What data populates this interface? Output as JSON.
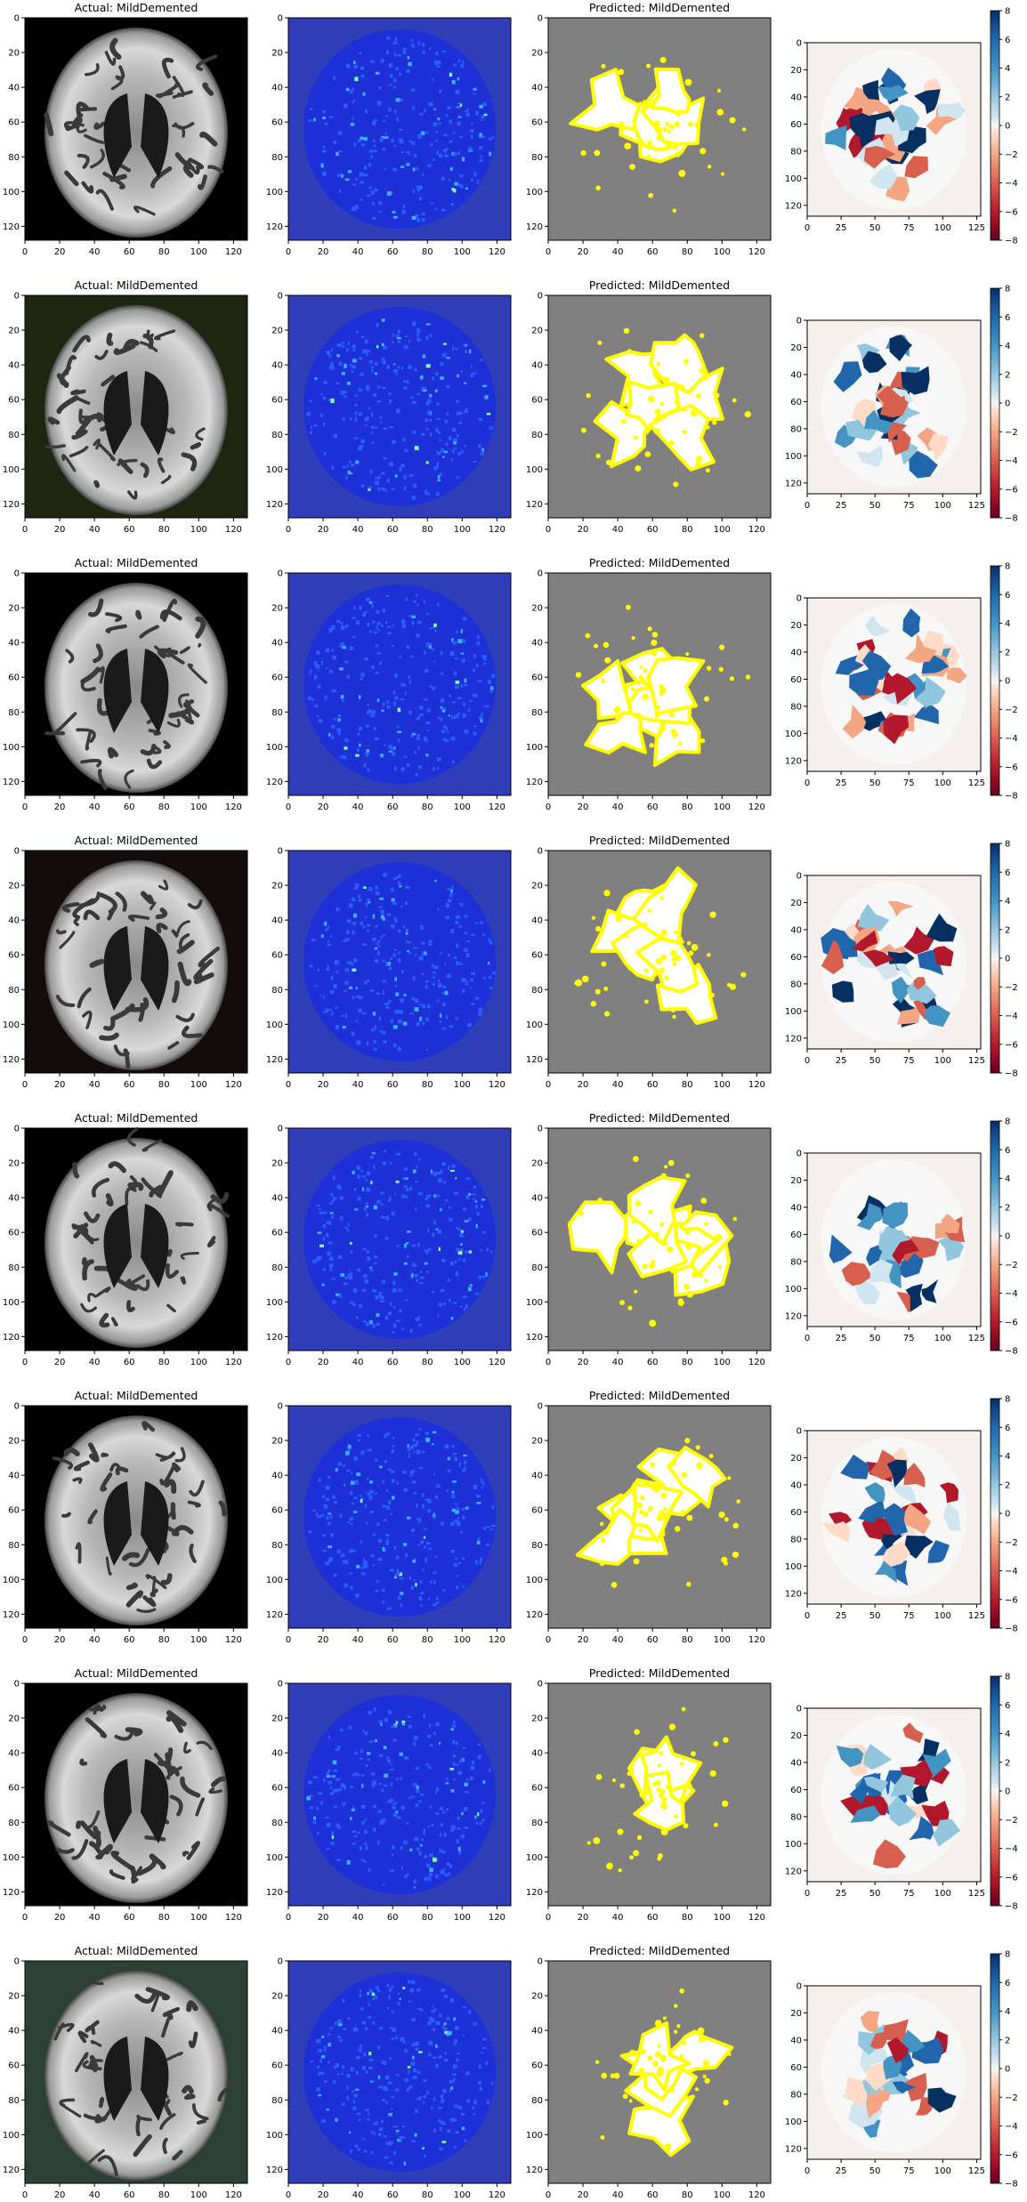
{
  "figure": {
    "background": "#ffffff"
  },
  "chart_data": {
    "type": "image-grid",
    "description_rows": 8,
    "panel_titles": {
      "actual": "Actual: MildDemented",
      "predicted": "Predicted: MildDemented"
    },
    "image_axis": {
      "xlim": [
        0,
        128
      ],
      "ylim": [
        128,
        0
      ],
      "xticks": [
        "0",
        "20",
        "40",
        "60",
        "80",
        "100",
        "120"
      ],
      "yticks": [
        "0",
        "20",
        "40",
        "60",
        "80",
        "100",
        "120"
      ]
    },
    "attr_axis": {
      "xlim": [
        0,
        128
      ],
      "ylim": [
        128,
        0
      ],
      "xticks": [
        "0",
        "25",
        "50",
        "75",
        "100",
        "125"
      ],
      "yticks": [
        "0",
        "20",
        "40",
        "60",
        "80",
        "100",
        "120"
      ]
    },
    "colorbar": {
      "range": [
        -8,
        8
      ],
      "ticks": [
        "8",
        "6",
        "4",
        "2",
        "0",
        "−2",
        "−4",
        "−6",
        "−8"
      ],
      "colormap": "RdBu"
    },
    "rows": [
      {
        "actual": "MildDemented",
        "predicted": "MildDemented",
        "mri_tint": "#000000"
      },
      {
        "actual": "MildDemented",
        "predicted": "MildDemented",
        "mri_tint": "#1e2612"
      },
      {
        "actual": "MildDemented",
        "predicted": "MildDemented",
        "mri_tint": "#000000"
      },
      {
        "actual": "MildDemented",
        "predicted": "MildDemented",
        "mri_tint": "#140c0c"
      },
      {
        "actual": "MildDemented",
        "predicted": "MildDemented",
        "mri_tint": "#000000"
      },
      {
        "actual": "MildDemented",
        "predicted": "MildDemented",
        "mri_tint": "#000000"
      },
      {
        "actual": "MildDemented",
        "predicted": "MildDemented",
        "mri_tint": "#000000"
      },
      {
        "actual": "MildDemented",
        "predicted": "MildDemented",
        "mri_tint": "#2d4035"
      }
    ],
    "colors": {
      "saliency_bg": "#2f3db8",
      "mask_bg": "#808080",
      "mask_fg": "#ffffff",
      "mask_edge": "#ffff00",
      "attr_bg": "#f5f0ee"
    }
  }
}
